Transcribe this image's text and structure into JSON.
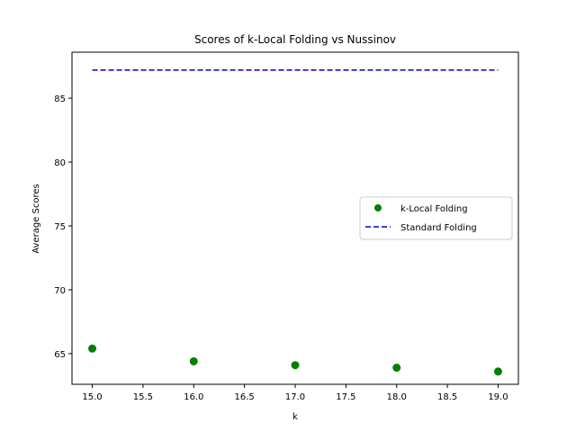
{
  "chart_data": {
    "type": "scatter",
    "title": "Scores of k-Local Folding vs Nussinov",
    "xlabel": "k",
    "ylabel": "Average Scores",
    "xlim": [
      14.8,
      19.2
    ],
    "ylim": [
      62.6,
      88.6
    ],
    "xticks": [
      15.0,
      15.5,
      16.0,
      16.5,
      17.0,
      17.5,
      18.0,
      18.5,
      19.0
    ],
    "xtick_labels": [
      "15.0",
      "15.5",
      "16.0",
      "16.5",
      "17.0",
      "17.5",
      "18.0",
      "18.5",
      "19.0"
    ],
    "yticks": [
      65,
      70,
      75,
      80,
      85
    ],
    "ytick_labels": [
      "65",
      "70",
      "75",
      "80",
      "85"
    ],
    "grid": false,
    "legend_position": "center-right",
    "series": [
      {
        "name": "k-Local Folding",
        "kind": "scatter",
        "color": "#008000",
        "x": [
          15,
          16,
          17,
          18,
          19
        ],
        "y": [
          65.4,
          64.4,
          64.1,
          63.9,
          63.6
        ]
      },
      {
        "name": "Standard Folding",
        "kind": "dashed-line",
        "color": "#0000bf",
        "x": [
          15,
          19
        ],
        "y": [
          87.2,
          87.2
        ]
      }
    ]
  }
}
